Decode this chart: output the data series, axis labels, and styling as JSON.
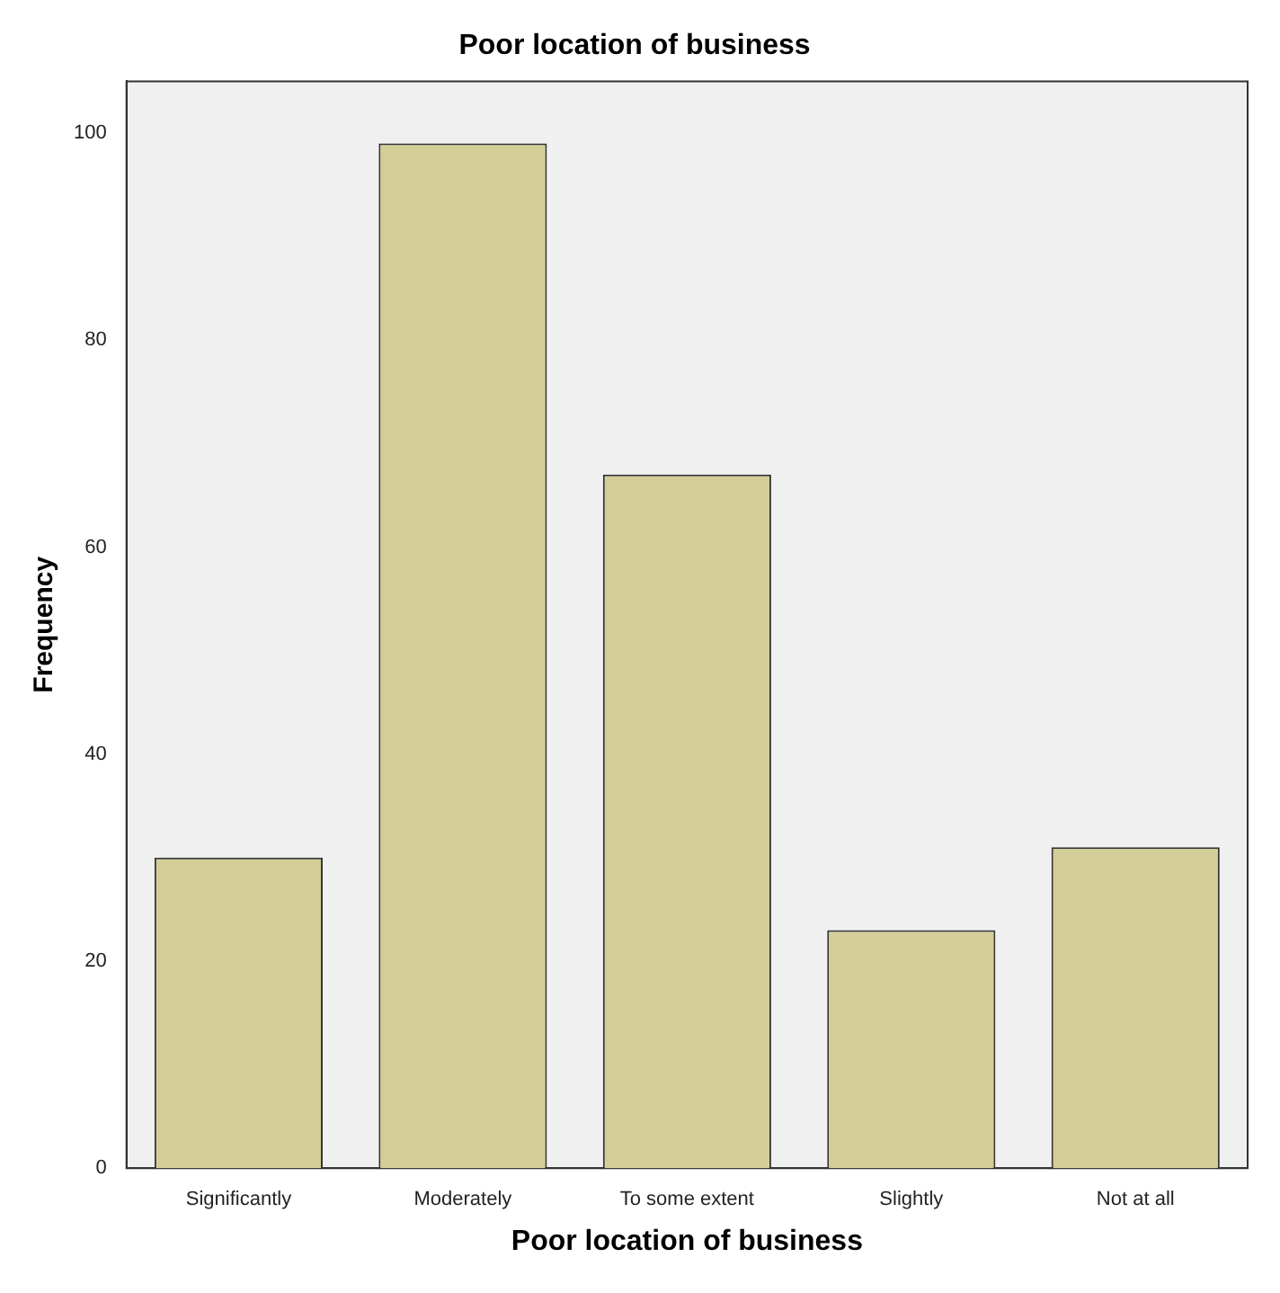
{
  "chart_data": {
    "type": "bar",
    "title": "Poor location of business",
    "xlabel": "Poor location of business",
    "ylabel": "Frequency",
    "categories": [
      "Significantly",
      "Moderately",
      "To some extent",
      "Slightly",
      "Not at all"
    ],
    "values": [
      30,
      99,
      67,
      23,
      31
    ],
    "color": "#d3ce97",
    "ylim": [
      0,
      105
    ],
    "yticks": [
      0,
      20,
      40,
      60,
      80,
      100
    ],
    "grid": false,
    "legend": false
  }
}
